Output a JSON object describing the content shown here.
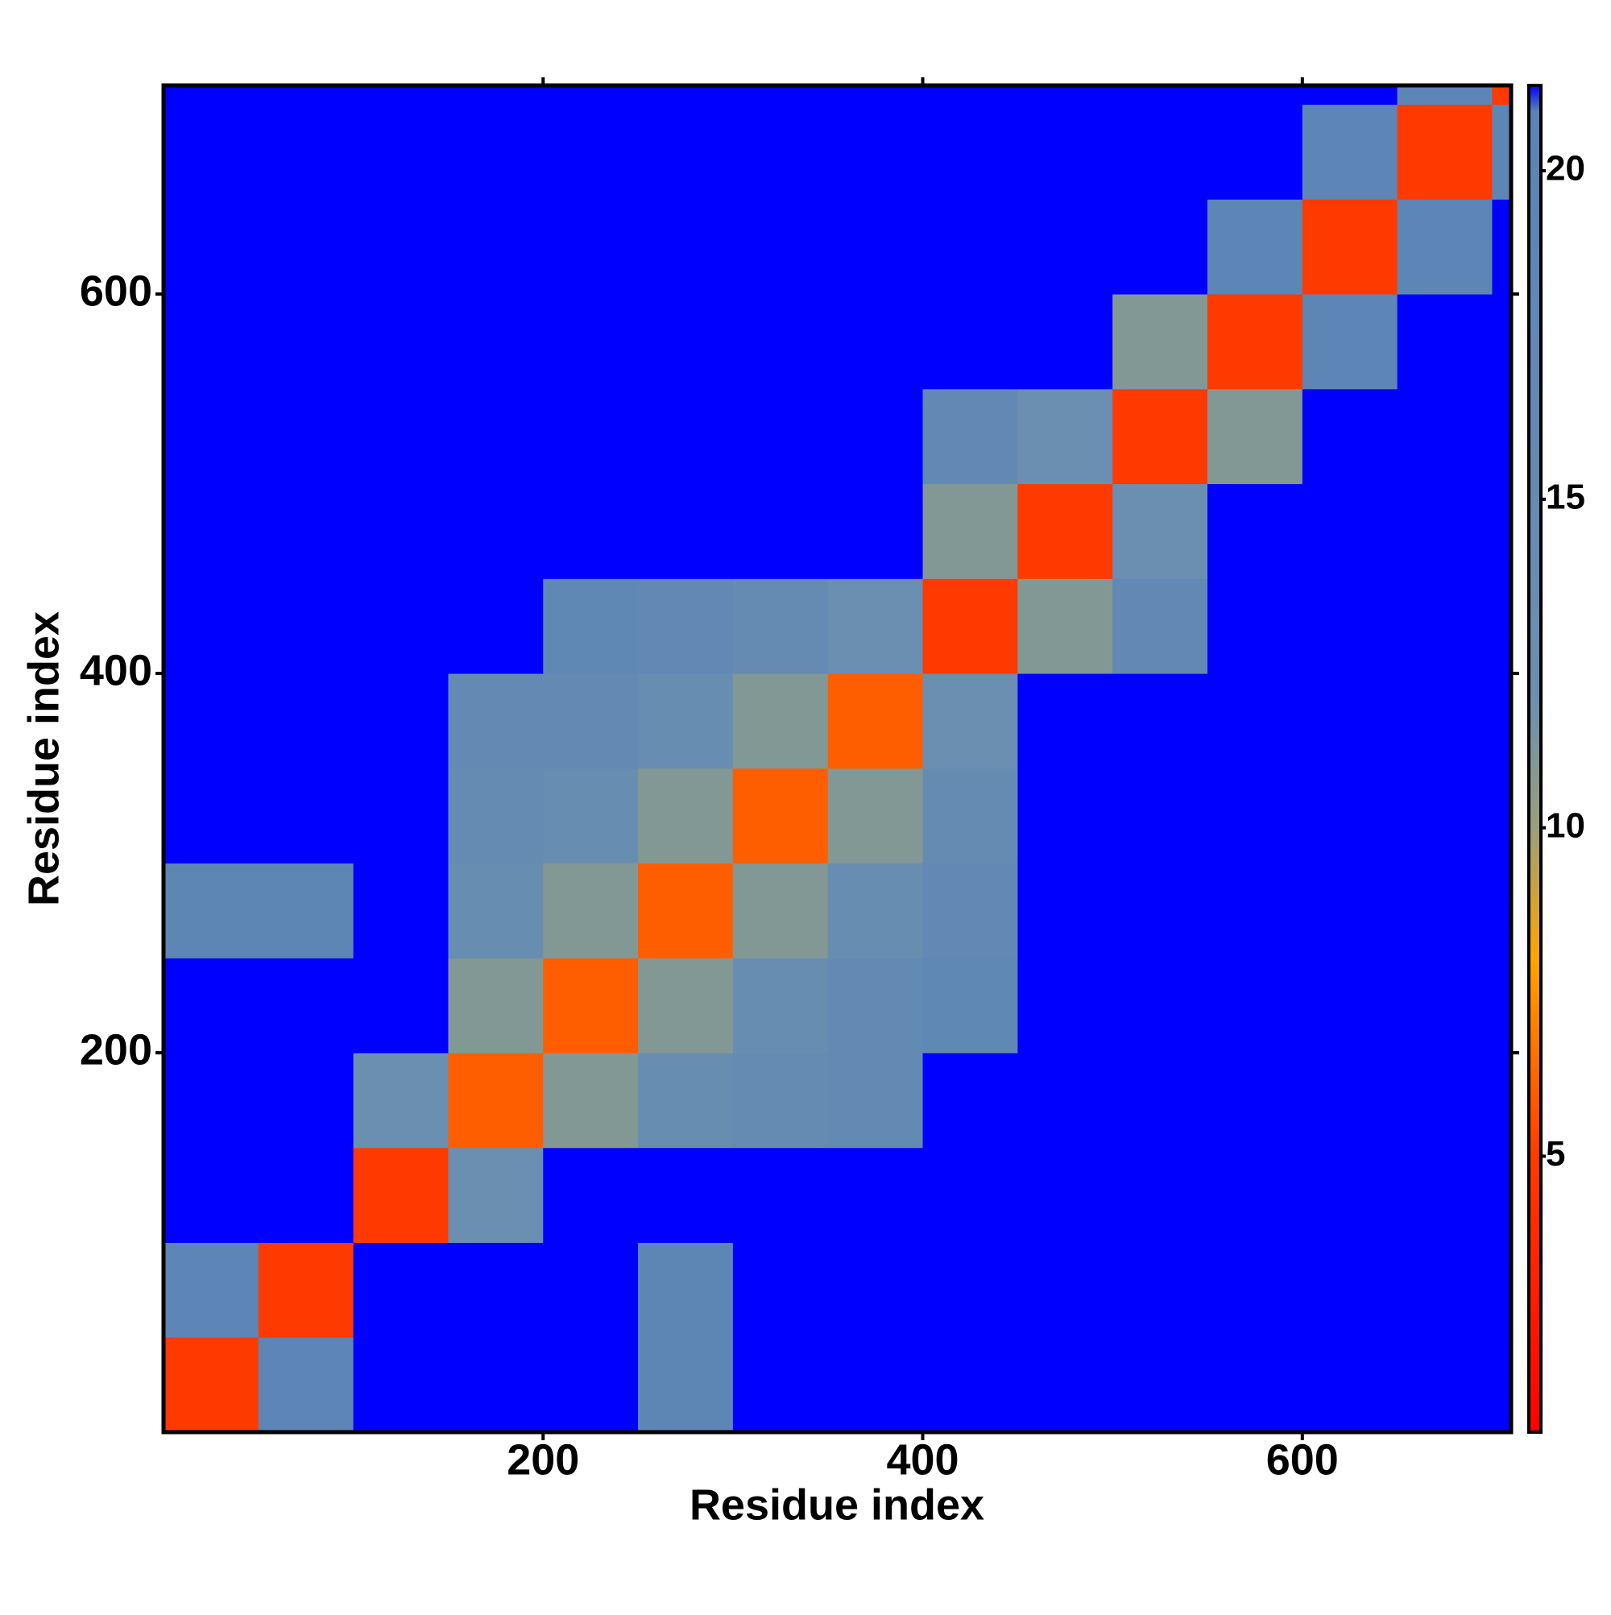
{
  "chart_data": {
    "type": "heatmap",
    "xlabel": "Residue index",
    "ylabel": "Residue index",
    "x_edges": [
      0,
      50,
      100,
      150,
      200,
      250,
      300,
      350,
      400,
      450,
      500,
      550,
      600,
      650,
      700,
      710
    ],
    "y_edges": [
      0,
      50,
      100,
      150,
      200,
      250,
      300,
      350,
      400,
      450,
      500,
      550,
      600,
      650,
      700,
      710
    ],
    "z": [
      [
        5,
        20,
        21.3,
        21.3,
        21.3,
        19,
        21.3,
        21.3,
        21.3,
        21.3,
        21.3,
        21.3,
        21.3,
        21.3,
        21.3
      ],
      [
        20,
        5,
        21.3,
        21.3,
        21.3,
        19,
        21.3,
        21.3,
        21.3,
        21.3,
        21.3,
        21.3,
        21.3,
        21.3,
        21.3
      ],
      [
        21.3,
        21.3,
        5,
        12,
        21.3,
        21.3,
        21.3,
        21.3,
        21.3,
        21.3,
        21.3,
        21.3,
        21.3,
        21.3,
        21.3
      ],
      [
        21.3,
        21.3,
        12,
        6,
        11,
        14,
        15,
        16,
        21.3,
        21.3,
        21.3,
        21.3,
        21.3,
        21.3,
        21.3
      ],
      [
        21.3,
        21.3,
        21.3,
        11,
        6,
        11,
        14,
        16,
        18,
        21.3,
        21.3,
        21.3,
        21.3,
        21.3,
        21.3
      ],
      [
        19,
        19,
        21.3,
        14,
        11,
        6,
        11,
        14,
        17,
        21.3,
        21.3,
        21.3,
        21.3,
        21.3,
        21.3
      ],
      [
        21.3,
        21.3,
        21.3,
        15,
        14,
        11,
        6,
        11,
        15,
        21.3,
        21.3,
        21.3,
        21.3,
        21.3,
        21.3
      ],
      [
        21.3,
        21.3,
        21.3,
        16,
        16,
        14,
        11,
        6,
        12,
        21.3,
        21.3,
        21.3,
        21.3,
        21.3,
        21.3
      ],
      [
        21.3,
        21.3,
        21.3,
        21.3,
        18,
        17,
        15,
        12,
        5,
        11,
        17,
        21.3,
        21.3,
        21.3,
        21.3
      ],
      [
        21.3,
        21.3,
        21.3,
        21.3,
        21.3,
        21.3,
        21.3,
        21.3,
        11,
        5,
        12,
        21.3,
        21.3,
        21.3,
        21.3
      ],
      [
        21.3,
        21.3,
        21.3,
        21.3,
        21.3,
        21.3,
        21.3,
        21.3,
        17,
        12,
        5,
        11,
        21.3,
        21.3,
        21.3
      ],
      [
        21.3,
        21.3,
        21.3,
        21.3,
        21.3,
        21.3,
        21.3,
        21.3,
        21.3,
        21.3,
        11,
        5,
        20,
        21.3,
        21.3
      ],
      [
        21.3,
        21.3,
        21.3,
        21.3,
        21.3,
        21.3,
        21.3,
        21.3,
        21.3,
        21.3,
        21.3,
        20,
        5,
        20,
        21.3
      ],
      [
        21.3,
        21.3,
        21.3,
        21.3,
        21.3,
        21.3,
        21.3,
        21.3,
        21.3,
        21.3,
        21.3,
        21.3,
        20,
        5,
        20
      ],
      [
        21.3,
        21.3,
        21.3,
        21.3,
        21.3,
        21.3,
        21.3,
        21.3,
        21.3,
        21.3,
        21.3,
        21.3,
        21.3,
        20,
        5
      ]
    ],
    "xlim": [
      0,
      710
    ],
    "ylim": [
      0,
      710
    ],
    "xticks": [
      200,
      400,
      600
    ],
    "yticks": [
      200,
      400,
      600
    ],
    "zlim": [
      0.8,
      21.3
    ],
    "zticks": [
      5,
      10,
      15,
      20
    ],
    "colorscale": [
      [
        0.8,
        "#ff0000"
      ],
      [
        5,
        "#ff3a00"
      ],
      [
        8,
        "#ffa500"
      ],
      [
        10,
        "#9aa07a"
      ],
      [
        12,
        "#6a8fb0"
      ],
      [
        20.9,
        "#5b84b6"
      ],
      [
        21.3,
        "#0000ff"
      ]
    ]
  }
}
